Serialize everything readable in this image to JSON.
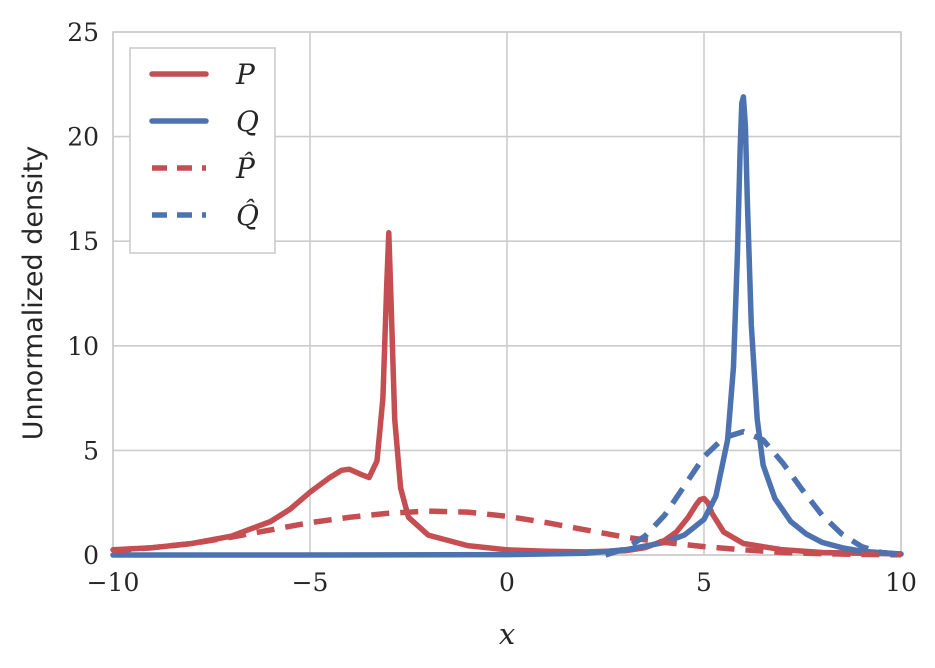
{
  "chart_data": {
    "type": "line",
    "xlabel": "x",
    "ylabel": "Unnormalized density",
    "xlim": [
      -10,
      10
    ],
    "ylim": [
      0,
      25
    ],
    "xticks": [
      -10,
      -5,
      0,
      5,
      10
    ],
    "xtick_labels": [
      "−10",
      "−5",
      "0",
      "5",
      "10"
    ],
    "yticks": [
      0,
      5,
      10,
      15,
      20,
      25
    ],
    "ytick_labels": [
      "0",
      "5",
      "10",
      "15",
      "20",
      "25"
    ],
    "grid": true,
    "legend_position": "top-left",
    "series": [
      {
        "name": "P",
        "color": "#c44e52",
        "style": "solid",
        "x": [
          -10,
          -9,
          -8,
          -7,
          -6,
          -5.5,
          -5,
          -4.5,
          -4.2,
          -4,
          -3.7,
          -3.5,
          -3.3,
          -3.15,
          -3.05,
          -3,
          -2.95,
          -2.85,
          -2.7,
          -2.5,
          -2,
          -1,
          0,
          1,
          2,
          3,
          3.5,
          4,
          4.3,
          4.6,
          4.8,
          4.9,
          5,
          5.1,
          5.2,
          5.5,
          6,
          7,
          8,
          9,
          10
        ],
        "y": [
          0.25,
          0.35,
          0.55,
          0.9,
          1.6,
          2.2,
          3.0,
          3.7,
          4.05,
          4.1,
          3.85,
          3.7,
          4.5,
          7.5,
          13.0,
          15.4,
          12.5,
          6.5,
          3.2,
          1.8,
          0.95,
          0.45,
          0.25,
          0.18,
          0.15,
          0.2,
          0.35,
          0.7,
          1.1,
          1.8,
          2.4,
          2.65,
          2.7,
          2.5,
          2.0,
          1.1,
          0.55,
          0.25,
          0.12,
          0.08,
          0.05
        ]
      },
      {
        "name": "Q",
        "color": "#4c72b0",
        "style": "solid",
        "x": [
          -10,
          -5,
          0,
          2,
          3,
          4,
          4.5,
          5,
          5.3,
          5.6,
          5.75,
          5.85,
          5.92,
          5.96,
          6,
          6.05,
          6.1,
          6.2,
          6.35,
          6.5,
          6.8,
          7.2,
          7.6,
          8,
          8.5,
          9,
          10
        ],
        "y": [
          0,
          0,
          0.02,
          0.08,
          0.25,
          0.6,
          0.95,
          1.7,
          2.8,
          5.5,
          9.0,
          14.5,
          19.5,
          21.6,
          21.9,
          20.5,
          17.0,
          11.0,
          6.5,
          4.3,
          2.7,
          1.6,
          1.0,
          0.6,
          0.35,
          0.18,
          0.05
        ]
      },
      {
        "name": "P̂",
        "color": "#c44e52",
        "style": "dashed",
        "x": [
          -10,
          -9,
          -8,
          -7,
          -6,
          -5,
          -4,
          -3,
          -2,
          -1,
          0,
          1,
          2,
          3,
          4,
          5,
          6,
          7,
          8,
          9,
          10
        ],
        "y": [
          0.2,
          0.35,
          0.55,
          0.85,
          1.2,
          1.55,
          1.8,
          2.0,
          2.1,
          2.05,
          1.85,
          1.55,
          1.2,
          0.85,
          0.6,
          0.4,
          0.25,
          0.12,
          0.06,
          0.03,
          0.01
        ]
      },
      {
        "name": "Q̂",
        "color": "#4c72b0",
        "style": "dashed",
        "x": [
          2.5,
          3,
          3.5,
          4,
          4.5,
          5,
          5.5,
          6,
          6.5,
          7,
          7.5,
          8,
          8.5,
          9,
          9.5,
          10
        ],
        "y": [
          0,
          0.3,
          0.9,
          1.9,
          3.3,
          4.7,
          5.6,
          5.9,
          5.5,
          4.4,
          3.1,
          1.9,
          1.0,
          0.4,
          0.12,
          0.02
        ]
      }
    ]
  }
}
